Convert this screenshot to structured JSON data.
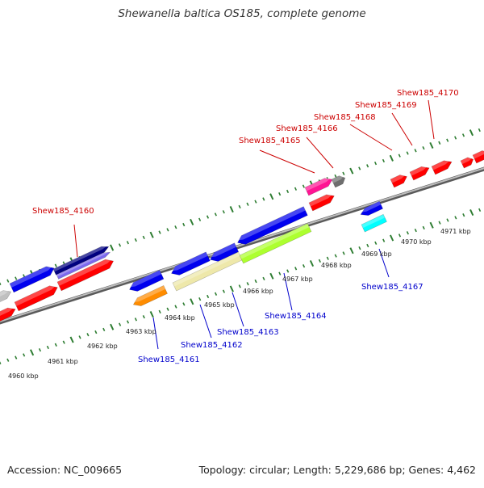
{
  "title": "Shewanella baltica OS185, complete genome",
  "footer": {
    "accession": "Accession: NC_009665",
    "topology": "Topology: circular; Length: 5,229,686 bp; Genes: 4,462"
  },
  "scale_labels": [
    "4960 kbp",
    "4961 kbp",
    "4962 kbp",
    "4963 kbp",
    "4964 kbp",
    "4965 kbp",
    "4966 kbp",
    "4967 kbp",
    "4968 kbp",
    "4969 kbp",
    "4970 kbp",
    "4971 kbp"
  ],
  "forward_gene_labels": [
    "Shew185_4160",
    "Shew185_4165",
    "Shew185_4166",
    "Shew185_4168",
    "Shew185_4169",
    "Shew185_4170"
  ],
  "reverse_gene_labels": [
    "Shew185_4161",
    "Shew185_4162",
    "Shew185_4163",
    "Shew185_4164",
    "Shew185_4167"
  ],
  "colors": {
    "forward_label": "#cc0000",
    "reverse_label": "#0000cc",
    "tick": "#2e7d32",
    "backbone": "#888888",
    "red": "#ff0000",
    "blue": "#0000ee",
    "navy": "#000080",
    "lavender": "#7b68ee",
    "magenta": "#ff1493",
    "orange": "#ff8c00",
    "khaki": "#eee8aa",
    "lime": "#adff2f",
    "cyan": "#00ffff",
    "gray": "#c0c0c0"
  }
}
